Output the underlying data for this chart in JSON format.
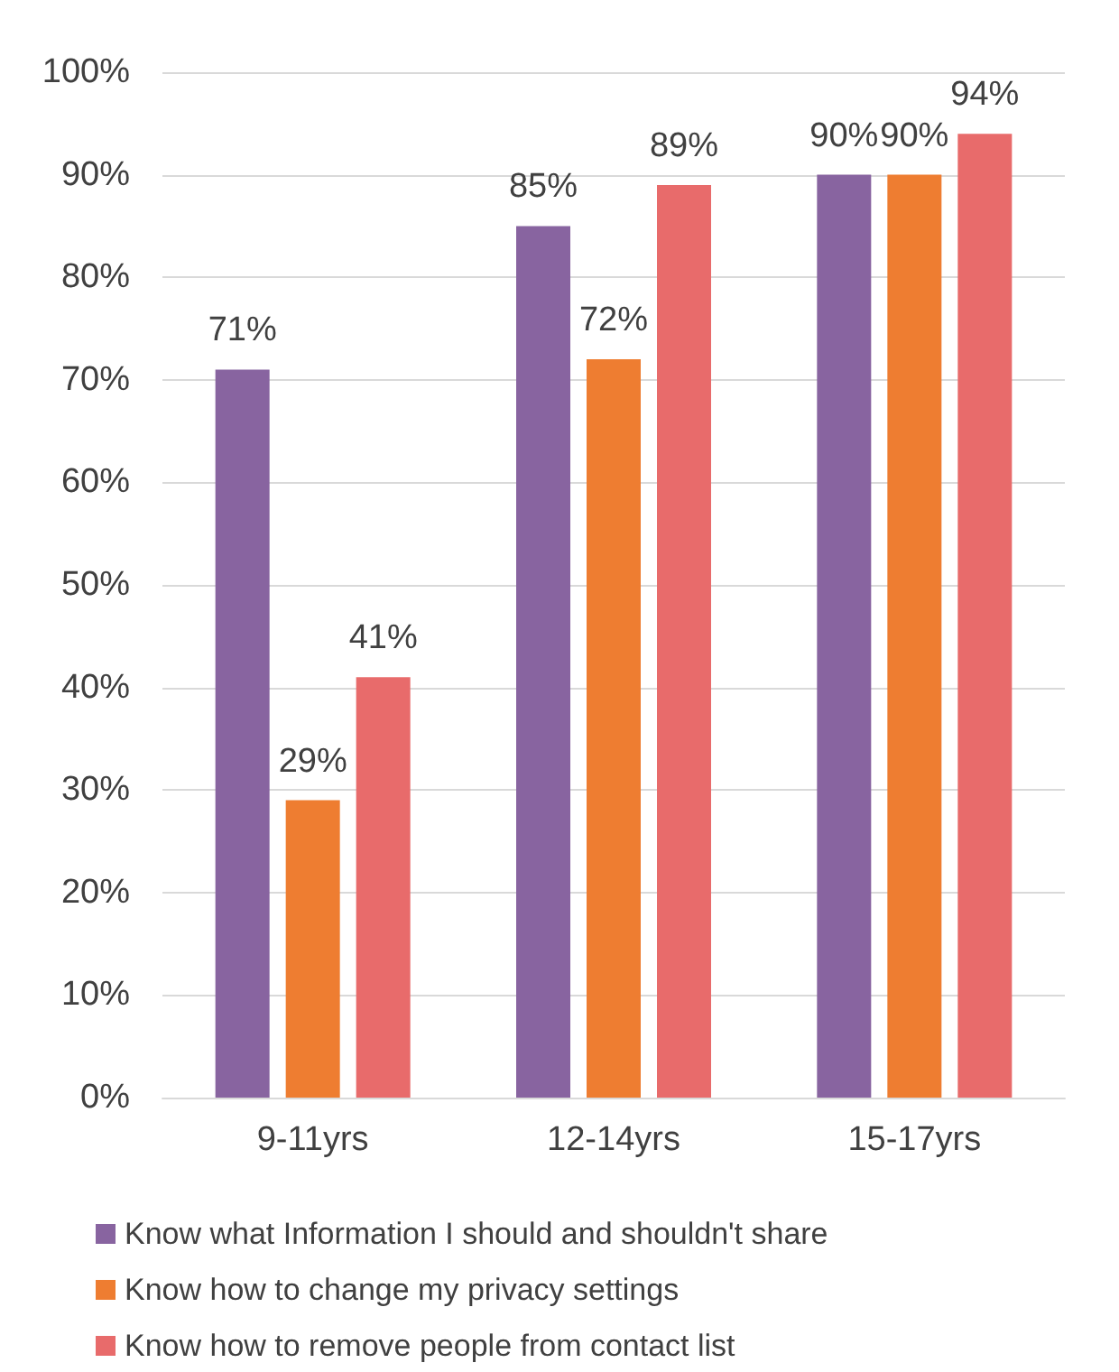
{
  "chart_data": {
    "type": "bar",
    "categories": [
      "9-11yrs",
      "12-14yrs",
      "15-17yrs"
    ],
    "series": [
      {
        "name": "Know what Information I should and shouldn't share",
        "color": "#8864a0",
        "values": [
          71,
          85,
          90
        ],
        "value_labels": [
          "71%",
          "85%",
          "90%"
        ]
      },
      {
        "name": "Know how to change my privacy settings",
        "color": "#ee7d31",
        "values": [
          29,
          72,
          90
        ],
        "value_labels": [
          "29%",
          "72%",
          "90%"
        ]
      },
      {
        "name": "Know how to remove people from contact list",
        "color": "#e86b6b",
        "values": [
          41,
          89,
          94
        ],
        "value_labels": [
          "41%",
          "89%",
          "94%"
        ]
      }
    ],
    "ylim": [
      0,
      100
    ],
    "yticks": [
      {
        "value": 0,
        "label": "0%"
      },
      {
        "value": 10,
        "label": "10%"
      },
      {
        "value": 20,
        "label": "20%"
      },
      {
        "value": 30,
        "label": "30%"
      },
      {
        "value": 40,
        "label": "40%"
      },
      {
        "value": 50,
        "label": "50%"
      },
      {
        "value": 60,
        "label": "60%"
      },
      {
        "value": 70,
        "label": "70%"
      },
      {
        "value": 80,
        "label": "80%"
      },
      {
        "value": 90,
        "label": "90%"
      },
      {
        "value": 100,
        "label": "100%"
      }
    ],
    "grid": "y",
    "legend": "bottom"
  }
}
